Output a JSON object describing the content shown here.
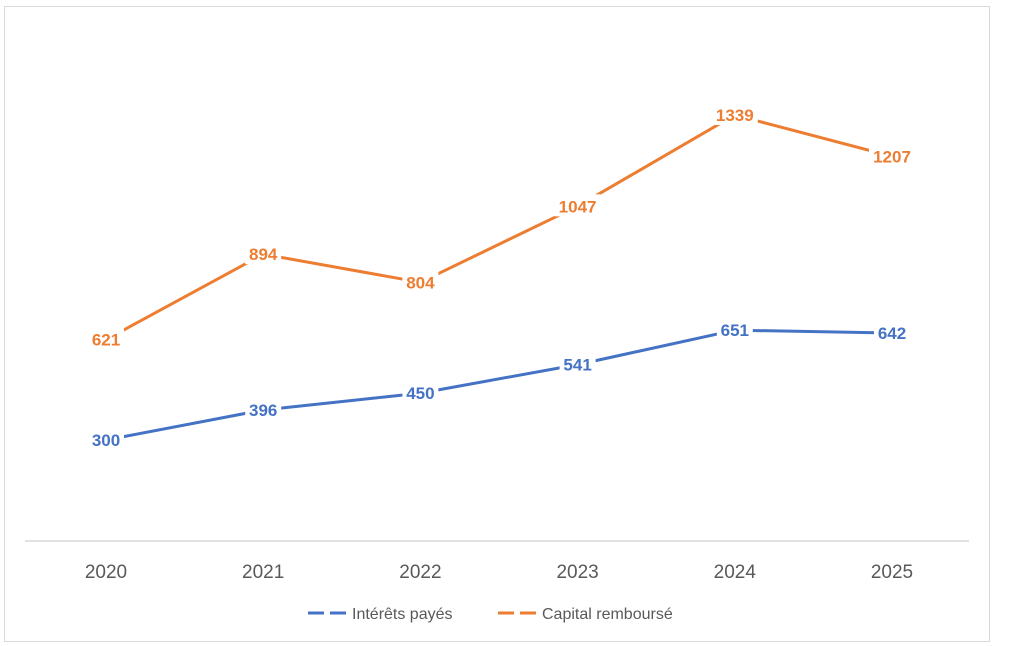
{
  "chart_data": {
    "type": "line",
    "categories": [
      "2020",
      "2021",
      "2022",
      "2023",
      "2024",
      "2025"
    ],
    "series": [
      {
        "name": "Intérêts payés",
        "values": [
          300,
          396,
          450,
          541,
          651,
          642
        ],
        "color": "#4472C4",
        "labels": [
          "300",
          "396",
          "450",
          "541",
          "651",
          "642"
        ]
      },
      {
        "name": "Capital remboursé",
        "values": [
          621,
          894,
          804,
          1047,
          1339,
          1207
        ],
        "color": "#ED7D31",
        "labels": [
          "621",
          "894",
          "804",
          "1047",
          "1339",
          "1207"
        ]
      }
    ],
    "ylim": [
      0,
      1600
    ],
    "grid": false,
    "legend_position": "bottom"
  }
}
